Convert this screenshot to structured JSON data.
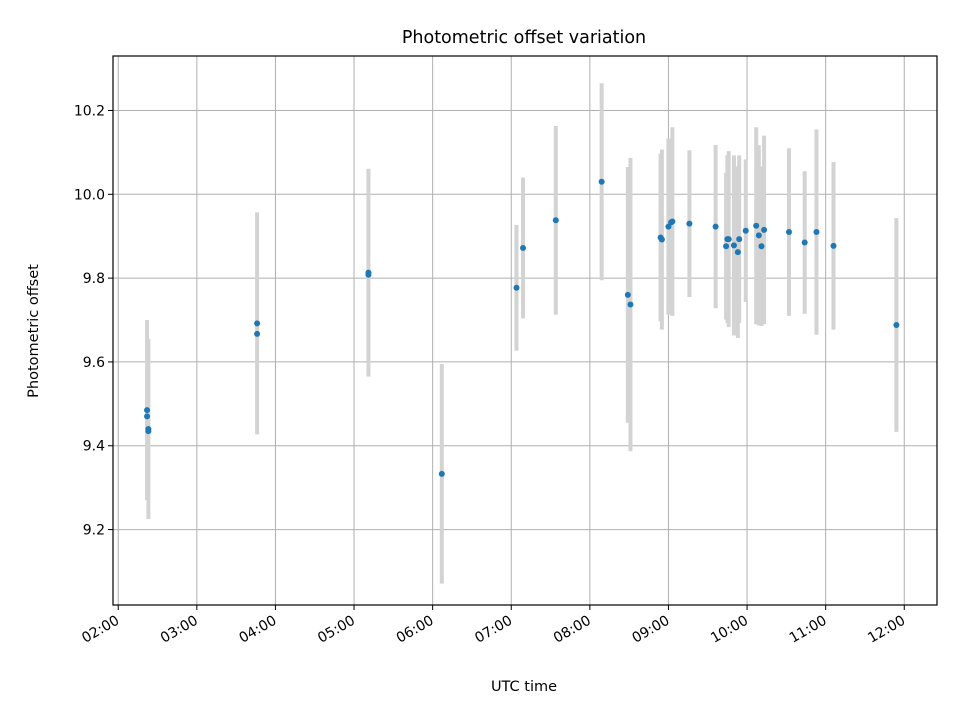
{
  "chart_data": {
    "type": "scatter",
    "title": "Photometric offset variation",
    "xlabel": "UTC time",
    "ylabel": "Photometric offset",
    "x_unit": "UTC hours",
    "xlim": [
      "01:56",
      "12:25"
    ],
    "ylim": [
      9.02,
      10.33
    ],
    "x_ticks": [
      "02:00",
      "03:00",
      "04:00",
      "05:00",
      "06:00",
      "07:00",
      "08:00",
      "09:00",
      "10:00",
      "11:00",
      "12:00"
    ],
    "y_ticks": [
      "9.2",
      "9.4",
      "9.6",
      "9.8",
      "10.0",
      "10.2"
    ],
    "grid": true,
    "marker_color": "#1f77b4",
    "errorbar_color": "#d3d3d3",
    "points": [
      {
        "t": "02:22",
        "y": 9.485,
        "err": 0.215
      },
      {
        "t": "02:22",
        "y": 9.47,
        "err": 0.0
      },
      {
        "t": "02:23",
        "y": 9.44,
        "err": 0.215
      },
      {
        "t": "02:23",
        "y": 9.435,
        "err": 0.0
      },
      {
        "t": "03:46",
        "y": 9.692,
        "err": 0.265
      },
      {
        "t": "03:46",
        "y": 9.667,
        "err": 0.0
      },
      {
        "t": "05:11",
        "y": 9.813,
        "err": 0.248
      },
      {
        "t": "05:11",
        "y": 9.808,
        "err": 0.0
      },
      {
        "t": "06:07",
        "y": 9.333,
        "err": 0.262
      },
      {
        "t": "07:04",
        "y": 9.777,
        "err": 0.15
      },
      {
        "t": "07:09",
        "y": 9.872,
        "err": 0.168
      },
      {
        "t": "07:34",
        "y": 9.938,
        "err": 0.225
      },
      {
        "t": "08:09",
        "y": 10.03,
        "err": 0.235
      },
      {
        "t": "08:29",
        "y": 9.76,
        "err": 0.305
      },
      {
        "t": "08:31",
        "y": 9.737,
        "err": 0.35
      },
      {
        "t": "08:54",
        "y": 9.897,
        "err": 0.2
      },
      {
        "t": "08:55",
        "y": 9.892,
        "err": 0.215
      },
      {
        "t": "09:00",
        "y": 9.923,
        "err": 0.21
      },
      {
        "t": "09:02",
        "y": 9.933,
        "err": 0.2
      },
      {
        "t": "09:03",
        "y": 9.935,
        "err": 0.225
      },
      {
        "t": "09:16",
        "y": 9.93,
        "err": 0.175
      },
      {
        "t": "09:36",
        "y": 9.923,
        "err": 0.195
      },
      {
        "t": "09:44",
        "y": 9.876,
        "err": 0.175
      },
      {
        "t": "09:45",
        "y": 9.893,
        "err": 0.2
      },
      {
        "t": "09:46",
        "y": 9.893,
        "err": 0.21
      },
      {
        "t": "09:50",
        "y": 9.878,
        "err": 0.215
      },
      {
        "t": "09:53",
        "y": 9.862,
        "err": 0.205
      },
      {
        "t": "09:54",
        "y": 9.893,
        "err": 0.2
      },
      {
        "t": "09:59",
        "y": 9.913,
        "err": 0.17
      },
      {
        "t": "10:07",
        "y": 9.925,
        "err": 0.235
      },
      {
        "t": "10:09",
        "y": 9.902,
        "err": 0.215
      },
      {
        "t": "10:11",
        "y": 9.876,
        "err": 0.19
      },
      {
        "t": "10:13",
        "y": 9.915,
        "err": 0.225
      },
      {
        "t": "10:32",
        "y": 9.91,
        "err": 0.2
      },
      {
        "t": "10:44",
        "y": 9.885,
        "err": 0.17
      },
      {
        "t": "10:53",
        "y": 9.91,
        "err": 0.245
      },
      {
        "t": "11:06",
        "y": 9.877,
        "err": 0.2
      },
      {
        "t": "11:54",
        "y": 9.688,
        "err": 0.255
      }
    ]
  }
}
